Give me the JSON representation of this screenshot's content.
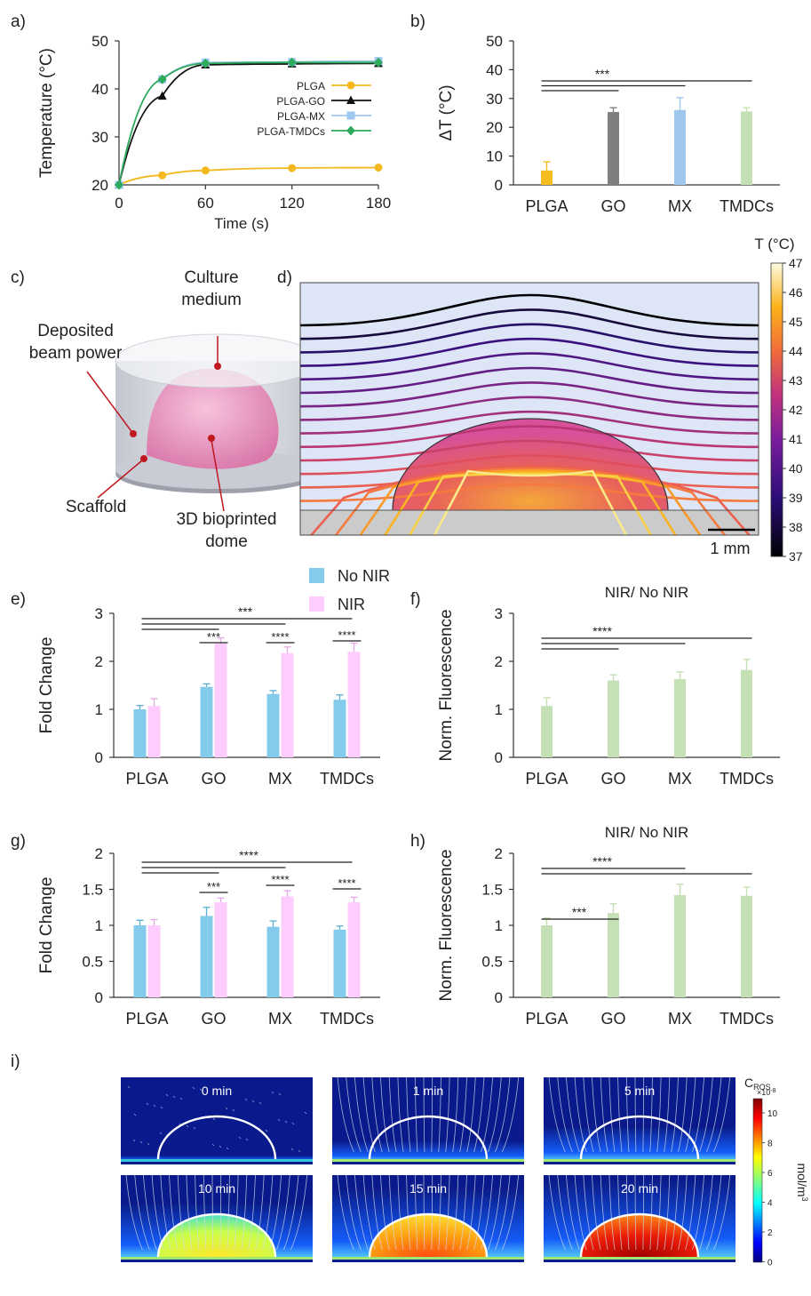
{
  "chart_data": [
    {
      "panel": "a)",
      "type": "line",
      "xlabel": "Time (s)",
      "ylabel": "Temperature (°C)",
      "xlim": [
        0,
        180
      ],
      "ylim": [
        20,
        50
      ],
      "xticks": [
        "0",
        "60",
        "120",
        "180"
      ],
      "yticks": [
        "20",
        "30",
        "40",
        "50"
      ],
      "legend_position": "right-middle",
      "series": [
        {
          "name": "PLGA",
          "color": "#f2b81e",
          "marker": "circle",
          "x": [
            0,
            30,
            60,
            120,
            180
          ],
          "y": [
            20,
            22,
            23,
            23.5,
            23.6
          ]
        },
        {
          "name": "PLGA-GO",
          "color": "#111111",
          "marker": "triangle",
          "x": [
            0,
            30,
            60,
            120,
            180
          ],
          "y": [
            20,
            38.5,
            45,
            45.2,
            45.3
          ]
        },
        {
          "name": "PLGA-MX",
          "color": "#9ec8ef",
          "marker": "square",
          "x": [
            0,
            30,
            60,
            120,
            180
          ],
          "y": [
            20,
            42,
            45.5,
            45.6,
            45.8
          ]
        },
        {
          "name": "PLGA-TMDCs",
          "color": "#2eaa5b",
          "marker": "diamond",
          "x": [
            0,
            30,
            60,
            120,
            180
          ],
          "y": [
            20,
            42,
            45.3,
            45.5,
            45.5
          ]
        }
      ]
    },
    {
      "panel": "b)",
      "type": "bar",
      "ylabel": "ΔT (°C)",
      "ylim": [
        0,
        50
      ],
      "yticks": [
        "0",
        "10",
        "20",
        "30",
        "40",
        "50"
      ],
      "categories": [
        "PLGA",
        "GO",
        "MX",
        "TMDCs"
      ],
      "values": [
        5,
        25.3,
        26,
        25.5
      ],
      "errors": [
        3,
        1.5,
        4.3,
        1.3
      ],
      "colors": [
        "#f6bd20",
        "#7f7f7f",
        "#9fc7ee",
        "#c5e0b4"
      ],
      "significance": {
        "label": "***",
        "from": "PLGA",
        "to": [
          "GO",
          "MX",
          "TMDCs"
        ]
      }
    },
    {
      "panel": "e)",
      "type": "bar",
      "ylabel": "Fold Change",
      "ylim": [
        0,
        3
      ],
      "yticks": [
        "0",
        "1",
        "2",
        "3"
      ],
      "categories": [
        "PLGA",
        "GO",
        "MX",
        "TMDCs"
      ],
      "legend_position": "top",
      "series": [
        {
          "name": "No NIR",
          "color": "#83cbeb",
          "values": [
            1.0,
            1.47,
            1.32,
            1.2
          ],
          "errors": [
            0.08,
            0.06,
            0.07,
            0.1
          ]
        },
        {
          "name": "NIR",
          "color": "#ffccff",
          "values": [
            1.07,
            2.37,
            2.17,
            2.2
          ],
          "errors": [
            0.15,
            0.12,
            0.13,
            0.18
          ]
        }
      ],
      "significance": [
        {
          "label": "***",
          "pair": "GO"
        },
        {
          "label": "****",
          "pair": "MX"
        },
        {
          "label": "****",
          "pair": "TMDCs"
        },
        {
          "label": "***",
          "from": "PLGA",
          "to": [
            "GO",
            "MX",
            "TMDCs"
          ]
        }
      ]
    },
    {
      "panel": "f)",
      "type": "bar",
      "title": "NIR/ No NIR",
      "ylabel": "Norm. Fluorescence",
      "ylim": [
        0,
        3
      ],
      "yticks": [
        "0",
        "1",
        "2",
        "3"
      ],
      "categories": [
        "PLGA",
        "GO",
        "MX",
        "TMDCs"
      ],
      "values": [
        1.07,
        1.6,
        1.63,
        1.82
      ],
      "errors": [
        0.17,
        0.12,
        0.15,
        0.22
      ],
      "colors": [
        "#c5e0b4",
        "#c5e0b4",
        "#c5e0b4",
        "#c5e0b4"
      ],
      "significance": {
        "label": "****",
        "from": "PLGA",
        "to": [
          "GO",
          "MX",
          "TMDCs"
        ]
      }
    },
    {
      "panel": "g)",
      "type": "bar",
      "ylabel": "Fold Change",
      "ylim": [
        0,
        2
      ],
      "yticks": [
        "0",
        "0.5",
        "1",
        "1.5",
        "2"
      ],
      "categories": [
        "PLGA",
        "GO",
        "MX",
        "TMDCs"
      ],
      "series": [
        {
          "name": "No NIR",
          "color": "#83cbeb",
          "values": [
            1.0,
            1.13,
            0.98,
            0.94
          ],
          "errors": [
            0.07,
            0.12,
            0.08,
            0.05
          ]
        },
        {
          "name": "NIR",
          "color": "#ffccff",
          "values": [
            1.0,
            1.32,
            1.4,
            1.32
          ],
          "errors": [
            0.08,
            0.06,
            0.08,
            0.07
          ]
        }
      ],
      "significance": [
        {
          "label": "***",
          "pair": "GO"
        },
        {
          "label": "****",
          "pair": "MX"
        },
        {
          "label": "****",
          "pair": "TMDCs"
        },
        {
          "label": "****",
          "from": "PLGA",
          "to": [
            "GO",
            "MX",
            "TMDCs"
          ]
        }
      ]
    },
    {
      "panel": "h)",
      "type": "bar",
      "title": "NIR/ No NIR",
      "ylabel": "Norm. Fluorescence",
      "ylim": [
        0,
        2
      ],
      "yticks": [
        "0",
        "0.5",
        "1",
        "1.5",
        "2"
      ],
      "categories": [
        "PLGA",
        "GO",
        "MX",
        "TMDCs"
      ],
      "values": [
        1.0,
        1.17,
        1.42,
        1.41
      ],
      "errors": [
        0.1,
        0.13,
        0.15,
        0.12
      ],
      "colors": [
        "#c5e0b4",
        "#c5e0b4",
        "#c5e0b4",
        "#c5e0b4"
      ],
      "significance": [
        {
          "label": "***",
          "from": "PLGA",
          "to": [
            "GO"
          ]
        },
        {
          "label": "****",
          "from": "PLGA",
          "to": [
            "MX",
            "TMDCs"
          ]
        }
      ]
    }
  ],
  "panel_c": {
    "label": "c)",
    "culture_medium": [
      "Culture",
      "medium"
    ],
    "deposited_beam": [
      "Deposited",
      "beam power"
    ],
    "scaffold": "Scaffold",
    "dome": [
      "3D bioprinted",
      "dome"
    ]
  },
  "panel_d": {
    "label": "d)",
    "colorbar_title": "T (°C)",
    "colorbar_ticks": [
      "47",
      "46",
      "45",
      "44",
      "43",
      "42",
      "41",
      "40",
      "39",
      "38",
      "37"
    ],
    "scale_bar": "1 mm"
  },
  "panel_i": {
    "label": "i)",
    "times": [
      "0 min",
      "1 min",
      "5 min",
      "10 min",
      "15 min",
      "20 min"
    ],
    "colorbar_title": "C",
    "colorbar_title_sub": "ROS",
    "colorbar_exponent": "×10",
    "colorbar_exponent_sup": "-8",
    "colorbar_ticks": [
      "10",
      "8",
      "6",
      "4",
      "2",
      "0"
    ],
    "colorbar_unit": "mol/m",
    "colorbar_unit_sup": "3"
  }
}
